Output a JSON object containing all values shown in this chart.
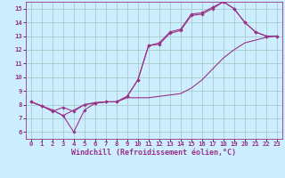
{
  "xlabel": "Windchill (Refroidissement éolien,°C)",
  "bg_color": "#cceeff",
  "grid_color": "#aacccc",
  "line_color": "#993388",
  "xlim": [
    -0.5,
    23.5
  ],
  "ylim": [
    5.5,
    15.5
  ],
  "xticks": [
    0,
    1,
    2,
    3,
    4,
    5,
    6,
    7,
    8,
    9,
    10,
    11,
    12,
    13,
    14,
    15,
    16,
    17,
    18,
    19,
    20,
    21,
    22,
    23
  ],
  "yticks": [
    6,
    7,
    8,
    9,
    10,
    11,
    12,
    13,
    14,
    15
  ],
  "line1_x": [
    0,
    1,
    2,
    3,
    4,
    5,
    6,
    7,
    8,
    9,
    10,
    11,
    12,
    13,
    14,
    15,
    16,
    17,
    18,
    19,
    20,
    21,
    22,
    23
  ],
  "line1_y": [
    8.2,
    7.9,
    7.6,
    7.2,
    6.0,
    7.6,
    8.1,
    8.2,
    8.2,
    8.6,
    9.8,
    12.3,
    12.5,
    13.3,
    13.5,
    14.6,
    14.7,
    15.1,
    15.5,
    15.0,
    14.0,
    13.3,
    13.0,
    13.0
  ],
  "line2_x": [
    0,
    1,
    2,
    3,
    4,
    5,
    6,
    7,
    8,
    9,
    10,
    11,
    12,
    13,
    14,
    15,
    16,
    17,
    18,
    19,
    20,
    21,
    22,
    23
  ],
  "line2_y": [
    8.2,
    7.9,
    7.6,
    7.2,
    7.6,
    8.0,
    8.15,
    8.2,
    8.2,
    8.5,
    8.5,
    8.5,
    8.6,
    8.7,
    8.8,
    9.2,
    9.8,
    10.6,
    11.4,
    12.0,
    12.5,
    12.7,
    12.9,
    13.0
  ],
  "line3_x": [
    0,
    1,
    2,
    3,
    4,
    5,
    6,
    7,
    8,
    9,
    10,
    11,
    12,
    13,
    14,
    15,
    16,
    17,
    18,
    19,
    20,
    21,
    22,
    23
  ],
  "line3_y": [
    8.2,
    7.9,
    7.5,
    7.8,
    7.5,
    8.0,
    8.1,
    8.2,
    8.2,
    8.6,
    9.8,
    12.3,
    12.4,
    13.2,
    13.4,
    14.5,
    14.6,
    15.0,
    15.5,
    15.0,
    14.0,
    13.3,
    13.0,
    13.0
  ],
  "tick_fontsize": 5.2,
  "label_fontsize": 6.0,
  "marker": "D",
  "marker_size": 1.8,
  "linewidth": 0.8
}
